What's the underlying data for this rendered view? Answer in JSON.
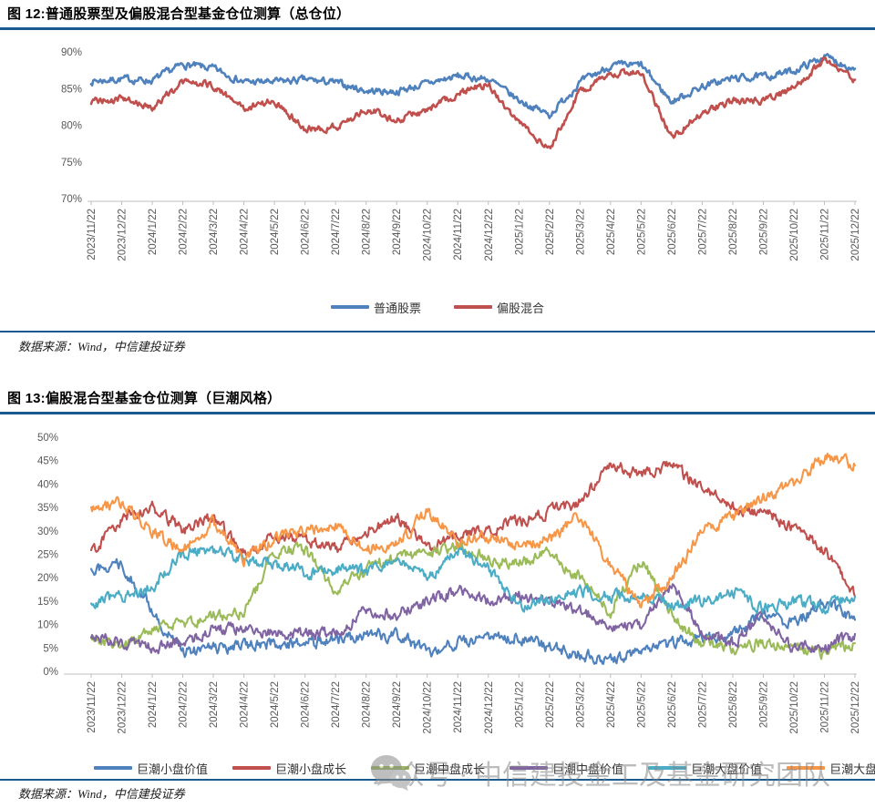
{
  "sources": {
    "figure12": "数据来源：Wind，中信建投证券",
    "figure13": "数据来源：Wind，中信建投证券"
  },
  "watermark": {
    "icon": "wechat-icon",
    "text": "公众号 · 中信建投金工及基金研究团队"
  },
  "colors": {
    "rule": "#1A5A8F",
    "axis_line": "#BFBFBF",
    "tick_text": "#595959",
    "blue": "#4F81BD",
    "red": "#C0504D",
    "green": "#9BBB59",
    "purple": "#8064A2",
    "teal": "#4BACC6",
    "orange": "#F79646"
  },
  "chart_data": [
    {
      "type": "line",
      "title": "图 12:普通股票型及偏股混合型基金仓位测算（总仓位）",
      "xlabel": "",
      "ylabel": "",
      "ylim": [
        70,
        90
      ],
      "ytick_step": 5,
      "grid": false,
      "legend_position": "bottom-center",
      "categories": [
        "2023/11/22",
        "2023/12/22",
        "2024/1/22",
        "2024/2/22",
        "2024/3/22",
        "2024/4/22",
        "2024/5/22",
        "2024/6/22",
        "2024/7/22",
        "2024/8/22",
        "2024/9/22",
        "2024/10/22",
        "2024/11/22",
        "2024/12/22",
        "2025/1/22",
        "2025/2/22",
        "2025/3/22",
        "2025/4/22",
        "2025/5/22",
        "2025/6/22",
        "2025/7/22",
        "2025/8/22",
        "2025/9/22",
        "2025/10/22",
        "2025/11/22",
        "2025/12/22"
      ],
      "series": [
        {
          "name": "普通股票",
          "color": "#4F81BD",
          "values": [
            86.0,
            86.3,
            86.1,
            88.3,
            87.7,
            85.9,
            85.9,
            86.2,
            85.8,
            84.7,
            84.6,
            85.7,
            86.7,
            86.3,
            83.4,
            81.4,
            85.8,
            88.1,
            88.2,
            83.2,
            85.3,
            86.4,
            86.6,
            87.4,
            89.4,
            87.7
          ]
        },
        {
          "name": "偏股混合",
          "color": "#C0504D",
          "values": [
            83.2,
            83.6,
            82.4,
            85.9,
            85.4,
            82.3,
            83.4,
            79.6,
            79.7,
            82.2,
            80.7,
            82.1,
            84.2,
            85.7,
            80.3,
            76.9,
            84.6,
            87.2,
            87.3,
            78.3,
            81.7,
            83.4,
            83.2,
            85.1,
            88.8,
            86.2
          ]
        }
      ]
    },
    {
      "type": "line",
      "title": "图 13:偏股混合型基金仓位测算（巨潮风格）",
      "xlabel": "",
      "ylabel": "",
      "ylim": [
        0,
        50
      ],
      "ytick_step": 5,
      "grid": false,
      "legend_position": "bottom",
      "categories": [
        "2023/11/22",
        "2023/12/22",
        "2024/1/22",
        "2024/2/22",
        "2024/3/22",
        "2024/4/22",
        "2024/5/22",
        "2024/6/22",
        "2024/7/22",
        "2024/8/22",
        "2024/9/22",
        "2024/10/22",
        "2024/11/22",
        "2024/12/22",
        "2025/1/22",
        "2025/2/22",
        "2025/3/22",
        "2025/4/22",
        "2025/5/22",
        "2025/6/22",
        "2025/7/22",
        "2025/8/22",
        "2025/9/22",
        "2025/10/22",
        "2025/11/22",
        "2025/12/22"
      ],
      "series": [
        {
          "name": "巨潮小盘价值",
          "color": "#4F81BD",
          "values": [
            22,
            23,
            13,
            4,
            5,
            5.5,
            6,
            6,
            7,
            7.5,
            8,
            4,
            6,
            7,
            7.5,
            5,
            3.5,
            2.5,
            4,
            6,
            7,
            8,
            12,
            10,
            15,
            11
          ]
        },
        {
          "name": "巨潮小盘成长",
          "color": "#C0504D",
          "values": [
            25,
            33,
            35,
            30,
            33,
            25,
            29,
            28,
            26,
            30,
            33,
            26,
            29,
            30,
            32,
            34,
            36,
            44,
            42,
            44,
            39,
            35,
            34,
            31,
            26,
            16
          ]
        },
        {
          "name": "巨潮中盘成长",
          "color": "#9BBB59",
          "values": [
            7,
            5,
            9,
            10,
            12,
            12,
            26,
            26,
            17,
            22,
            24,
            25,
            27,
            24,
            23,
            25,
            20,
            13,
            24,
            12,
            6,
            5,
            6,
            5,
            4,
            6
          ]
        },
        {
          "name": "巨潮中盘价值",
          "color": "#8064A2",
          "values": [
            8,
            6,
            5,
            6,
            9,
            9,
            8,
            8,
            8,
            13,
            12,
            15,
            17,
            15,
            16,
            15,
            13,
            10,
            9,
            19,
            8,
            6,
            11,
            5,
            5,
            8
          ]
        },
        {
          "name": "巨潮大盘价值",
          "color": "#4BACC6",
          "values": [
            14.5,
            16,
            18,
            25,
            26,
            24,
            23,
            21,
            22,
            21,
            25,
            20,
            26,
            22,
            14,
            16,
            17,
            16,
            16,
            14,
            15,
            17,
            13.5,
            15,
            14,
            16
          ]
        },
        {
          "name": "巨潮大盘成长",
          "color": "#F79646",
          "values": [
            35,
            36,
            30,
            26,
            32,
            24,
            28,
            30,
            31,
            26,
            27,
            34,
            28,
            29,
            27,
            28,
            33,
            23,
            14,
            20,
            30,
            33,
            37,
            40,
            46,
            44
          ]
        }
      ]
    }
  ]
}
